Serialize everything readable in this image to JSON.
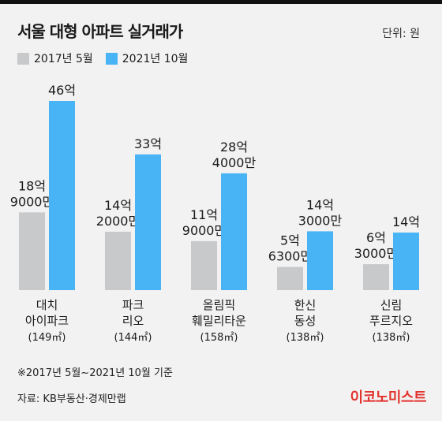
{
  "header": {
    "title": "서울 대형 아파트 실거래가",
    "unit": "단위: 원"
  },
  "legend": [
    {
      "label": "2017년 5월",
      "color": "#c8c9cb"
    },
    {
      "label": "2021년 10월",
      "color": "#49b4f5"
    }
  ],
  "chart_data": {
    "type": "bar",
    "title": "서울 대형 아파트 실거래가",
    "categories": [
      {
        "lines": [
          "대치",
          "아이파크"
        ],
        "area": "(149㎡)"
      },
      {
        "lines": [
          "파크",
          "리오"
        ],
        "area": "(144㎡)"
      },
      {
        "lines": [
          "올림픽",
          "훼밀리타운"
        ],
        "area": "(158㎡)"
      },
      {
        "lines": [
          "한신",
          "동성"
        ],
        "area": "(138㎡)"
      },
      {
        "lines": [
          "신림",
          "푸르지오"
        ],
        "area": "(138㎡)"
      }
    ],
    "series": [
      {
        "name": "2017년 5월",
        "values": [
          1890000000,
          1420000000,
          1190000000,
          563000000,
          630000000
        ],
        "labels": [
          [
            "18억",
            "9000만"
          ],
          [
            "14억",
            "2000만"
          ],
          [
            "11억",
            "9000만"
          ],
          [
            "5억",
            "6300만"
          ],
          [
            "6억",
            "3000만"
          ]
        ]
      },
      {
        "name": "2021년 10월",
        "values": [
          4600000000,
          3300000000,
          2840000000,
          1430000000,
          1400000000
        ],
        "labels": [
          [
            "46억"
          ],
          [
            "33억"
          ],
          [
            "28억",
            "4000만"
          ],
          [
            "14억",
            "3000만"
          ],
          [
            "14억"
          ]
        ]
      }
    ],
    "ylim": [
      0,
      4600000000
    ],
    "grid": false,
    "legend_position": "top-left"
  },
  "footer": {
    "note": "※2017년 5월~2021년 10월 기준",
    "source": "자료: KB부동산·경제만랩",
    "brand": "이코노미스트"
  },
  "colors": {
    "gray_bar": "#c8c9cb",
    "blue_bar": "#49b4f5",
    "brand": "#e2332d"
  }
}
